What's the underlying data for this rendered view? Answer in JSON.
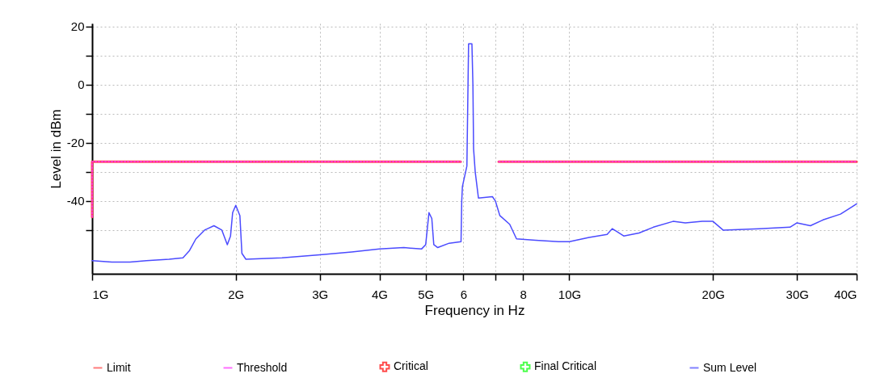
{
  "chart_data": {
    "type": "line",
    "xlabel": "Frequency in Hz",
    "ylabel": "Level in dBm",
    "log": "x",
    "grid": true,
    "legend": "bottom",
    "xlim": [
      1,
      40
    ],
    "xticks": [
      {
        "value": 1,
        "label": "1G"
      },
      {
        "value": 2,
        "label": "2G"
      },
      {
        "value": 3,
        "label": "3G"
      },
      {
        "value": 4,
        "label": "4G"
      },
      {
        "value": 5,
        "label": "5G"
      },
      6,
      {
        "value": 7,
        "label": null
      },
      8,
      {
        "value": 10,
        "label": "10G"
      },
      {
        "value": 20,
        "label": "20G"
      },
      {
        "value": 30,
        "label": "30G"
      },
      {
        "value": 40,
        "label": "40G"
      }
    ],
    "ylim": [
      -65,
      21
    ],
    "yticks": [
      20,
      {
        "value": 10,
        "label": null
      },
      0,
      {
        "value": -10,
        "label": null
      },
      -20,
      {
        "value": -30,
        "label": null
      },
      -40,
      {
        "value": -50,
        "label": null
      }
    ],
    "series": [
      {
        "name": "Limit",
        "color": "#ff4444",
        "line_style": "solid",
        "marker": "none",
        "x": [
          1,
          1,
          5.92,
          6.5,
          7.11,
          40
        ],
        "values": [
          -45.5,
          -26.5,
          -26.5,
          null,
          -26.5,
          -26.5
        ]
      },
      {
        "name": "Threshold",
        "color": "#ff33ff",
        "line_style": "dotted",
        "marker": "none",
        "x": [
          1,
          1,
          5.92,
          6.5,
          7.11,
          40
        ],
        "values": [
          -45.5,
          -26.5,
          -26.5,
          null,
          -26.5,
          -26.5
        ]
      },
      {
        "name": "Critical",
        "type": "scatter",
        "color": "#ff0000",
        "marker": "cross"
      },
      {
        "name": "Final Critical",
        "type": "scatter",
        "color": "#00ff00",
        "marker": "cross"
      },
      {
        "name": "Sum Level",
        "color": "#4b4bff",
        "line_style": "solid",
        "marker": "none",
        "x": [
          1,
          1.1,
          1.2,
          1.3,
          1.45,
          1.55,
          1.6,
          1.65,
          1.72,
          1.8,
          1.87,
          1.92,
          1.95,
          1.97,
          2,
          2.04,
          2.06,
          2.1,
          2.5,
          3,
          3.5,
          4,
          4.5,
          4.9,
          5,
          5.08,
          5.15,
          5.2,
          5.3,
          5.6,
          5.93,
          5.95,
          5.97,
          6.1,
          6.15,
          6.25,
          6.28,
          6.3,
          6.35,
          6.45,
          6.9,
          7,
          7.15,
          7.5,
          7.75,
          8.5,
          9.5,
          10,
          11,
          12,
          12.3,
          13,
          14,
          15,
          16.5,
          17.5,
          19,
          20,
          21,
          25,
          29,
          30,
          32,
          34,
          37,
          40
        ],
        "values": [
          -60.5,
          -61,
          -61,
          -60.5,
          -60,
          -59.5,
          -57,
          -53,
          -50,
          -48.5,
          -50,
          -55,
          -52,
          -44,
          -41.5,
          -45,
          -58,
          -60,
          -59.5,
          -58.5,
          -57.5,
          -56.5,
          -56,
          -56.5,
          -55,
          -44,
          -46,
          -55,
          -56,
          -54.5,
          -54,
          -40,
          -35,
          -28,
          14,
          14,
          0,
          -22,
          -30,
          -39,
          -38.5,
          -40,
          -45,
          -48,
          -53,
          -53.5,
          -54,
          -54,
          -52.5,
          -51.5,
          -49.5,
          -52,
          -51,
          -49,
          -47,
          -47.5,
          -47,
          -47,
          -50,
          -49.5,
          -49,
          -47.5,
          -48.5,
          -46.5,
          -44.5,
          -41
        ]
      }
    ]
  }
}
